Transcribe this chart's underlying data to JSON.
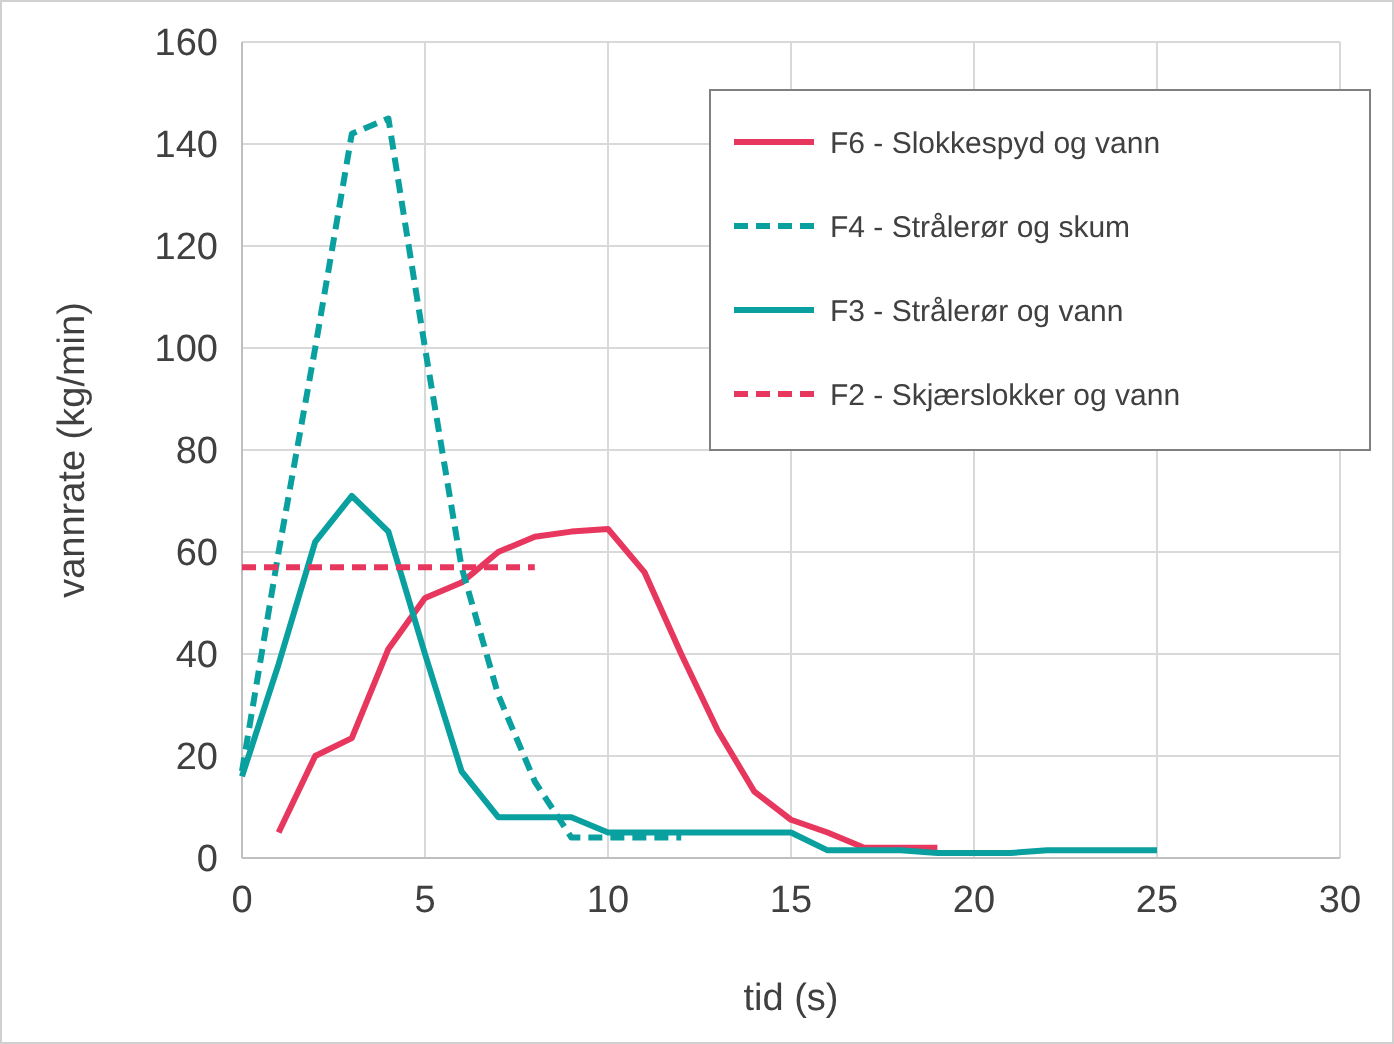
{
  "chart_data": {
    "type": "line",
    "xlabel": "tid (s)",
    "ylabel": "vannrate (kg/min)",
    "xlim": [
      0,
      30
    ],
    "xticks": [
      0,
      5,
      10,
      15,
      20,
      25,
      30
    ],
    "ylim": [
      0,
      160
    ],
    "yticks": [
      0,
      20,
      40,
      60,
      80,
      100,
      120,
      140,
      160
    ],
    "grid": true,
    "legend": "top right",
    "marker": "none",
    "series": [
      {
        "name": "F6 - Slokkespyd og vann",
        "color": "#e8375e",
        "line_style": "solid",
        "x": [
          1,
          2,
          3,
          4,
          5,
          6,
          7,
          8,
          9,
          10,
          11,
          12,
          13,
          14,
          15,
          16,
          17,
          18,
          19
        ],
        "values": [
          5,
          20,
          23.5,
          41,
          51,
          54,
          60,
          63,
          64,
          64.5,
          56,
          40,
          25,
          13,
          7.5,
          5,
          2,
          2,
          2
        ]
      },
      {
        "name": "F4 - Strålerør og skum",
        "color": "#0aa0a0",
        "line_style": "dashed",
        "x": [
          0,
          1,
          2,
          3,
          4,
          5,
          6,
          7,
          8,
          9,
          10,
          11,
          12
        ],
        "values": [
          17,
          60,
          100,
          142,
          145,
          100,
          57,
          32,
          15,
          4,
          4,
          4,
          4
        ]
      },
      {
        "name": "F3 - Strålerør og vann",
        "color": "#0aa0a0",
        "line_style": "solid",
        "x": [
          0,
          1,
          2,
          3,
          4,
          5,
          6,
          7,
          8,
          9,
          10,
          11,
          12,
          13,
          14,
          15,
          16,
          17,
          18,
          19,
          20,
          21,
          22,
          23,
          24,
          25
        ],
        "values": [
          16,
          38,
          62,
          71,
          64,
          40,
          17,
          8,
          8,
          8,
          5,
          5,
          5,
          5,
          5,
          5,
          1.5,
          1.5,
          1.5,
          1,
          1,
          1,
          1.5,
          1.5,
          1.5,
          1.5
        ]
      },
      {
        "name": "F2 - Skjærslokker og vann",
        "color": "#e8375e",
        "line_style": "dashed",
        "x": [
          0,
          1,
          2,
          3,
          4,
          5,
          6,
          7,
          8
        ],
        "values": [
          57,
          57,
          57,
          57,
          57,
          57,
          57,
          57,
          57
        ]
      }
    ]
  }
}
